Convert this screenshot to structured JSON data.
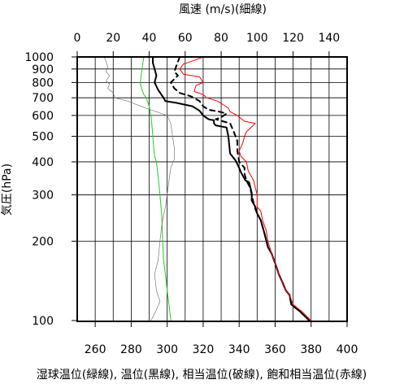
{
  "chart_data": {
    "type": "line",
    "title": "",
    "top_axis_label": "風速 (m/s)(細線)",
    "bottom_axis_label": "湿球温位(緑線), 温位(黒線), 相当温位(破線), 飽和相当温位(赤線)",
    "ylabel": "気圧(hPa)",
    "y_scale": "log",
    "y_reversed": true,
    "ylim": [
      1000,
      100
    ],
    "xlim_bottom": [
      250,
      400
    ],
    "xlim_top": [
      0,
      150
    ],
    "bottom_ticks": [
      260,
      280,
      300,
      320,
      340,
      360,
      380,
      400
    ],
    "top_ticks": [
      0,
      20,
      40,
      60,
      80,
      100,
      120,
      140
    ],
    "y_ticks": [
      100,
      200,
      300,
      400,
      500,
      600,
      700,
      800,
      900,
      1000
    ],
    "y_tick_labels": [
      "100",
      "200",
      "300",
      "400",
      "500",
      "600",
      "700",
      "800",
      "900",
      "1000"
    ],
    "grid": true,
    "colors": {
      "wet_bulb": "#22cc22",
      "potential_temperature": "#000000",
      "equivalent": "#000000",
      "saturated_equivalent": "#ff0000",
      "wind": "#777777"
    },
    "series": [
      {
        "key": "wet_bulb",
        "axis": "bottom",
        "style": "solid",
        "points": [
          [
            287,
            1000
          ],
          [
            286.5,
            950
          ],
          [
            286,
            900
          ],
          [
            285.5,
            850
          ],
          [
            285,
            800
          ],
          [
            286,
            750
          ],
          [
            287,
            720
          ],
          [
            288.5,
            700
          ],
          [
            289,
            680
          ],
          [
            290,
            650
          ],
          [
            290.5,
            620
          ],
          [
            291,
            600
          ],
          [
            291.5,
            550
          ],
          [
            292,
            500
          ],
          [
            292.5,
            450
          ],
          [
            293,
            420
          ],
          [
            294,
            400
          ],
          [
            295,
            350
          ],
          [
            296,
            300
          ],
          [
            297,
            250
          ],
          [
            297.5,
            200
          ],
          [
            298,
            170
          ],
          [
            299,
            150
          ],
          [
            300,
            130
          ],
          [
            301,
            115
          ],
          [
            302,
            100
          ]
        ]
      },
      {
        "key": "potential_temperature",
        "axis": "bottom",
        "style": "solid",
        "points": [
          [
            292,
            1000
          ],
          [
            292,
            950
          ],
          [
            293,
            900
          ],
          [
            294,
            850
          ],
          [
            293,
            800
          ],
          [
            295,
            750
          ],
          [
            298,
            700
          ],
          [
            299,
            680
          ],
          [
            305,
            670
          ],
          [
            314,
            650
          ],
          [
            318,
            625
          ],
          [
            320,
            600
          ],
          [
            323,
            580
          ],
          [
            326,
            575
          ],
          [
            326,
            560
          ],
          [
            327,
            550
          ],
          [
            333,
            540
          ],
          [
            334,
            500
          ],
          [
            335,
            430
          ],
          [
            338,
            405
          ],
          [
            340,
            380
          ],
          [
            341,
            365
          ],
          [
            343,
            345
          ],
          [
            343.5,
            340
          ],
          [
            345.5,
            335
          ],
          [
            347,
            305
          ],
          [
            347,
            285
          ],
          [
            349,
            270
          ],
          [
            350,
            255
          ],
          [
            352,
            240
          ],
          [
            354,
            215
          ],
          [
            356,
            190
          ],
          [
            358,
            180
          ],
          [
            360,
            165
          ],
          [
            362,
            150
          ],
          [
            364,
            140
          ],
          [
            366,
            130
          ],
          [
            368,
            125
          ],
          [
            369,
            115
          ],
          [
            374,
            108
          ],
          [
            379,
            100
          ]
        ]
      },
      {
        "key": "equivalent",
        "axis": "bottom",
        "style": "dashed",
        "points": [
          [
            307,
            1000
          ],
          [
            306,
            960
          ],
          [
            305,
            920
          ],
          [
            304,
            880
          ],
          [
            306,
            850
          ],
          [
            302,
            800
          ],
          [
            304,
            760
          ],
          [
            307,
            730
          ],
          [
            313,
            710
          ],
          [
            318,
            680
          ],
          [
            320,
            650
          ],
          [
            323,
            630
          ],
          [
            329,
            620
          ],
          [
            333,
            610
          ],
          [
            330,
            590
          ],
          [
            327,
            580
          ],
          [
            335,
            560
          ],
          [
            337,
            520
          ],
          [
            339,
            480
          ],
          [
            339,
            440
          ],
          [
            340,
            400
          ],
          [
            343,
            380
          ],
          [
            343,
            360
          ],
          [
            344,
            340
          ],
          [
            346,
            320
          ],
          [
            347,
            300
          ],
          [
            348,
            280
          ],
          [
            349,
            265
          ],
          [
            350,
            255
          ],
          [
            352,
            240
          ],
          [
            354,
            215
          ],
          [
            356,
            190
          ],
          [
            358,
            180
          ],
          [
            360,
            165
          ],
          [
            362,
            150
          ],
          [
            364,
            140
          ],
          [
            366,
            130
          ],
          [
            368,
            125
          ],
          [
            369,
            115
          ],
          [
            374,
            108
          ],
          [
            379,
            100
          ]
        ]
      },
      {
        "key": "saturated_equivalent",
        "axis": "bottom",
        "style": "solid",
        "points": [
          [
            320,
            1000
          ],
          [
            315,
            970
          ],
          [
            309,
            940
          ],
          [
            307,
            900
          ],
          [
            309,
            860
          ],
          [
            318,
            840
          ],
          [
            320,
            800
          ],
          [
            316,
            780
          ],
          [
            315,
            740
          ],
          [
            320,
            720
          ],
          [
            322,
            700
          ],
          [
            328,
            680
          ],
          [
            331,
            660
          ],
          [
            334,
            640
          ],
          [
            335,
            620
          ],
          [
            339,
            600
          ],
          [
            343,
            570
          ],
          [
            349,
            560
          ],
          [
            344,
            520
          ],
          [
            343,
            500
          ],
          [
            342,
            470
          ],
          [
            340,
            440
          ],
          [
            341,
            420
          ],
          [
            344,
            400
          ],
          [
            345,
            370
          ],
          [
            348,
            340
          ],
          [
            350,
            300
          ],
          [
            350,
            270
          ],
          [
            352,
            260
          ],
          [
            353,
            240
          ],
          [
            355,
            220
          ],
          [
            356,
            200
          ],
          [
            358,
            180
          ],
          [
            360,
            165
          ],
          [
            362,
            150
          ],
          [
            364,
            140
          ],
          [
            366,
            130
          ],
          [
            368,
            125
          ],
          [
            370,
            115
          ],
          [
            375,
            108
          ],
          [
            380,
            100
          ]
        ]
      },
      {
        "key": "wind",
        "axis": "top",
        "style": "thin",
        "points": [
          [
            15,
            1000
          ],
          [
            16,
            960
          ],
          [
            17,
            920
          ],
          [
            16,
            880
          ],
          [
            18,
            850
          ],
          [
            16,
            810
          ],
          [
            18,
            790
          ],
          [
            17,
            760
          ],
          [
            20,
            730
          ],
          [
            21,
            700
          ],
          [
            28,
            680
          ],
          [
            38,
            640
          ],
          [
            50,
            600
          ],
          [
            52,
            560
          ],
          [
            53,
            500
          ],
          [
            54,
            450
          ],
          [
            54,
            410
          ],
          [
            52,
            380
          ],
          [
            51,
            340
          ],
          [
            50,
            300
          ],
          [
            49,
            270
          ],
          [
            48,
            250
          ],
          [
            47,
            230
          ],
          [
            46,
            200
          ],
          [
            45,
            170
          ],
          [
            43,
            150
          ],
          [
            44,
            130
          ],
          [
            46,
            118
          ],
          [
            44,
            110
          ],
          [
            42,
            103
          ],
          [
            41,
            100
          ]
        ]
      }
    ]
  }
}
